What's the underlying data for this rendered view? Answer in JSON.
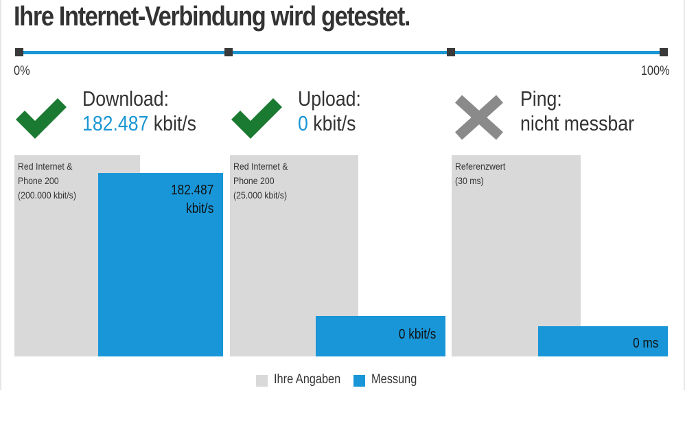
{
  "title": "Ihre Internet-Verbindung wird getestet.",
  "progress": {
    "start_label": "0%",
    "end_label": "100%",
    "percent": 100,
    "track_color": "#1a96d4"
  },
  "results": {
    "download": {
      "label": "Download:",
      "value": "182.487",
      "unit": "kbit/s",
      "status": "success",
      "icon": "checkmark-icon",
      "ref_label": "Red Internet &\nPhone 200\n(200.000 kbit/s)",
      "meas_label": "182.487\nkbit/s",
      "ref_fraction": 1.0,
      "meas_fraction": 0.912
    },
    "upload": {
      "label": "Upload:",
      "value": "0",
      "unit": "kbit/s",
      "status": "success",
      "icon": "checkmark-icon",
      "ref_label": "Red Internet &\nPhone 200\n(25.000 kbit/s)",
      "meas_label": "0 kbit/s",
      "ref_fraction": 1.0,
      "meas_fraction": 0.2
    },
    "ping": {
      "label": "Ping:",
      "value_text": "nicht messbar",
      "status": "failed",
      "icon": "cross-icon",
      "ref_label": "Referenzwert\n(30 ms)",
      "meas_label": "0 ms",
      "ref_fraction": 1.0,
      "meas_fraction": 0.15
    }
  },
  "legend": {
    "reference": "Ihre Angaben",
    "measurement": "Messung"
  },
  "colors": {
    "accent": "#1996d8",
    "reference_bar": "#d9d9d9",
    "success": "#1b7a31",
    "failure": "#8a8a8a"
  }
}
